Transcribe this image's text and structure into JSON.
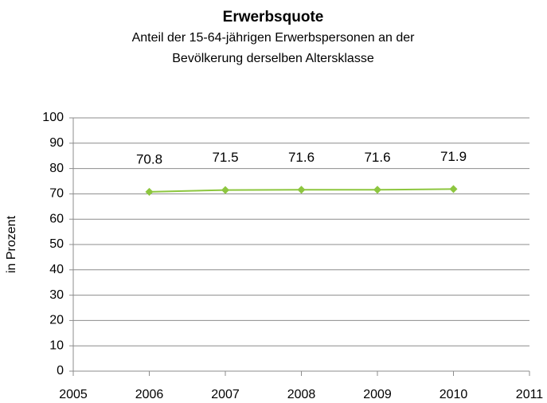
{
  "chart_data": {
    "type": "line",
    "title": "Erwerbsquote",
    "subtitle": [
      "Anteil der 15-64-jährigen Erwerbspersonen an der",
      "Bevölkerung derselben Altersklasse"
    ],
    "y_label": "in Prozent",
    "x": [
      2006,
      2007,
      2008,
      2009,
      2010
    ],
    "values": [
      70.8,
      71.5,
      71.6,
      71.6,
      71.9
    ],
    "color": "#8dc63f",
    "xlim": [
      2005,
      2011
    ],
    "xticks": [
      2005,
      2006,
      2007,
      2008,
      2009,
      2010,
      2011
    ],
    "ylim": [
      0,
      100
    ],
    "yticks": [
      0,
      10,
      20,
      30,
      40,
      50,
      60,
      70,
      80,
      90,
      100
    ],
    "grid": true
  }
}
